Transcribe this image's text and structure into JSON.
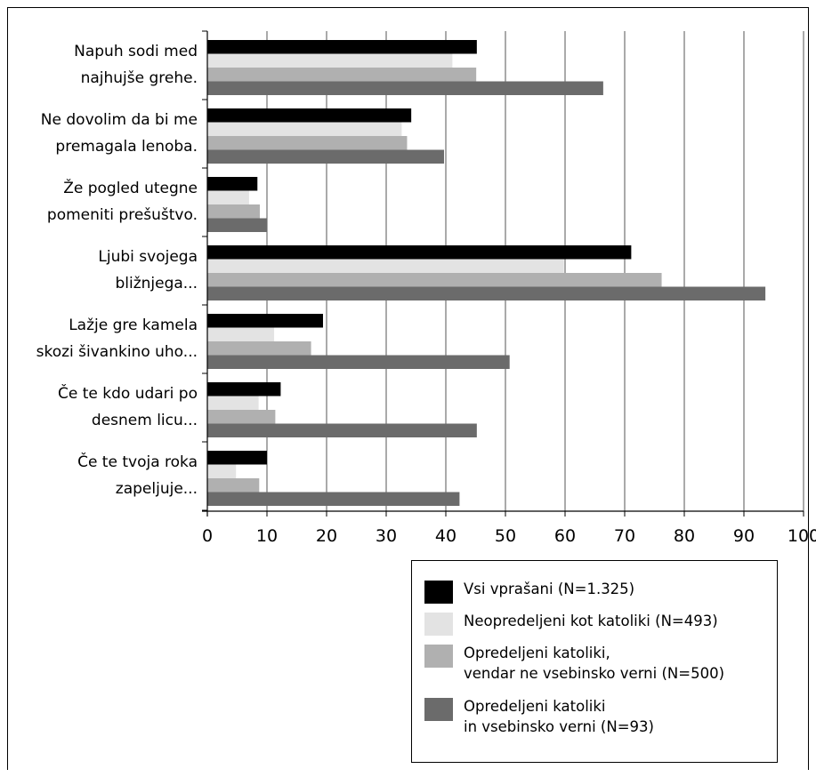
{
  "chart_data": {
    "type": "bar",
    "orientation": "horizontal",
    "categories": [
      "Napuh sodi med\nnajhujše grehe.",
      "Ne dovolim da bi me\npremagala lenoba.",
      "Že pogled utegne\npomeniti prešuštvo.",
      "Ljubi svojega\nbližnjega...",
      "Lažje gre kamela\nskozi šivankino uho...",
      "Če te kdo udari po\ndesnem licu...",
      "Če te tvoja roka\nzapeljuje..."
    ],
    "series": [
      {
        "name": "Vsi vprašani (N=1.325)",
        "color": "#000000",
        "values": [
          45.2,
          34.2,
          8.4,
          71.1,
          19.4,
          12.3,
          10.0
        ]
      },
      {
        "name": "Neopredeljeni kot katoliki (N=493)",
        "color": "#e3e3e3",
        "values": [
          41.1,
          32.6,
          7.0,
          59.8,
          11.2,
          8.6,
          4.8
        ]
      },
      {
        "name": "Opredeljeni katoliki,\nvendar ne vsebinsko verni (N=500)",
        "color": "#b0b0b0",
        "values": [
          45.1,
          33.5,
          8.8,
          76.2,
          17.4,
          11.4,
          8.7
        ]
      },
      {
        "name": "Opredeljeni katoliki\nin vsebinsko verni (N=93)",
        "color": "#6b6b6b",
        "values": [
          66.4,
          39.7,
          10.0,
          93.6,
          50.7,
          45.2,
          42.3
        ]
      }
    ],
    "xlim": [
      0,
      100
    ],
    "xticks": [
      "0",
      "10",
      "20",
      "30",
      "40",
      "50",
      "60",
      "70",
      "80",
      "90",
      "100"
    ],
    "grid": "vertical",
    "legend_position": "bottom-right"
  }
}
